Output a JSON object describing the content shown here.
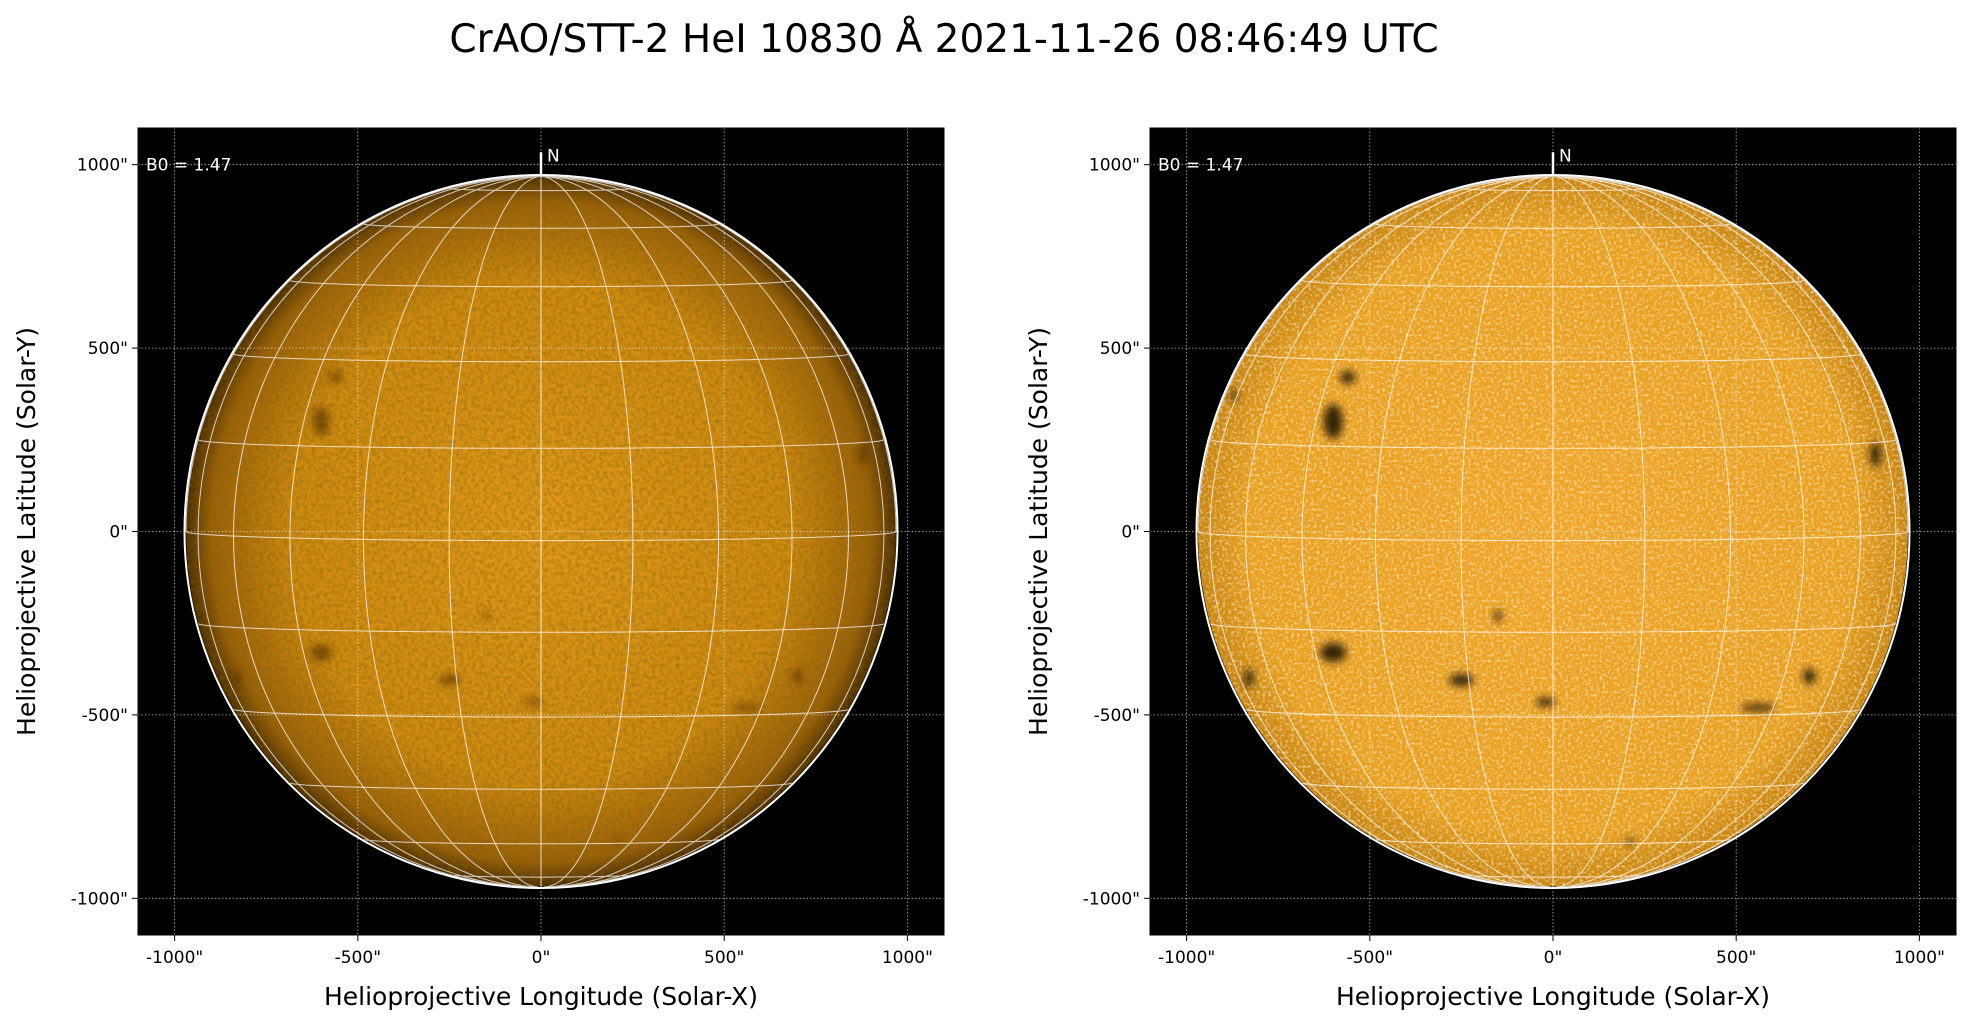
{
  "title": "CrAO/STT-2 HeI 10830 Å 2021-11-26 08:46:49 UTC",
  "chart_data": [
    {
      "type": "image",
      "colormap": "orange solar (sdoaia-like)",
      "xlabel": "Helioprojective Longitude (Solar-X)",
      "ylabel": "Helioprojective Latitude (Solar-Y)",
      "xlim": [
        -1100,
        1100
      ],
      "ylim": [
        -1100,
        1100
      ],
      "xticks": [
        "-1000\"",
        "-500\"",
        "0\"",
        "500\"",
        "1000\""
      ],
      "yticks": [
        "-1000\"",
        "-500\"",
        "0\"",
        "500\"",
        "1000\""
      ],
      "tick_values": [
        -1000,
        -500,
        0,
        500,
        1000
      ],
      "grid": true,
      "heliographic_grid_spacing_deg": 15,
      "solar_radius_arcsec": 969,
      "b0_deg": 1.47,
      "annotation": "B0 = 1.47",
      "north_marker": "N",
      "contrast": "normal"
    },
    {
      "type": "image",
      "colormap": "orange solar (sdoaia-like)",
      "xlabel": "Helioprojective Longitude (Solar-X)",
      "ylabel": "Helioprojective Latitude (Solar-Y)",
      "xlim": [
        -1100,
        1100
      ],
      "ylim": [
        -1100,
        1100
      ],
      "xticks": [
        "-1000\"",
        "-500\"",
        "0\"",
        "500\"",
        "1000\""
      ],
      "yticks": [
        "-1000\"",
        "-500\"",
        "0\"",
        "500\"",
        "1000\""
      ],
      "tick_values": [
        -1000,
        -500,
        0,
        500,
        1000
      ],
      "grid": true,
      "heliographic_grid_spacing_deg": 15,
      "solar_radius_arcsec": 969,
      "b0_deg": 1.47,
      "annotation": "B0 = 1.47",
      "north_marker": "N",
      "contrast": "enhanced"
    }
  ]
}
